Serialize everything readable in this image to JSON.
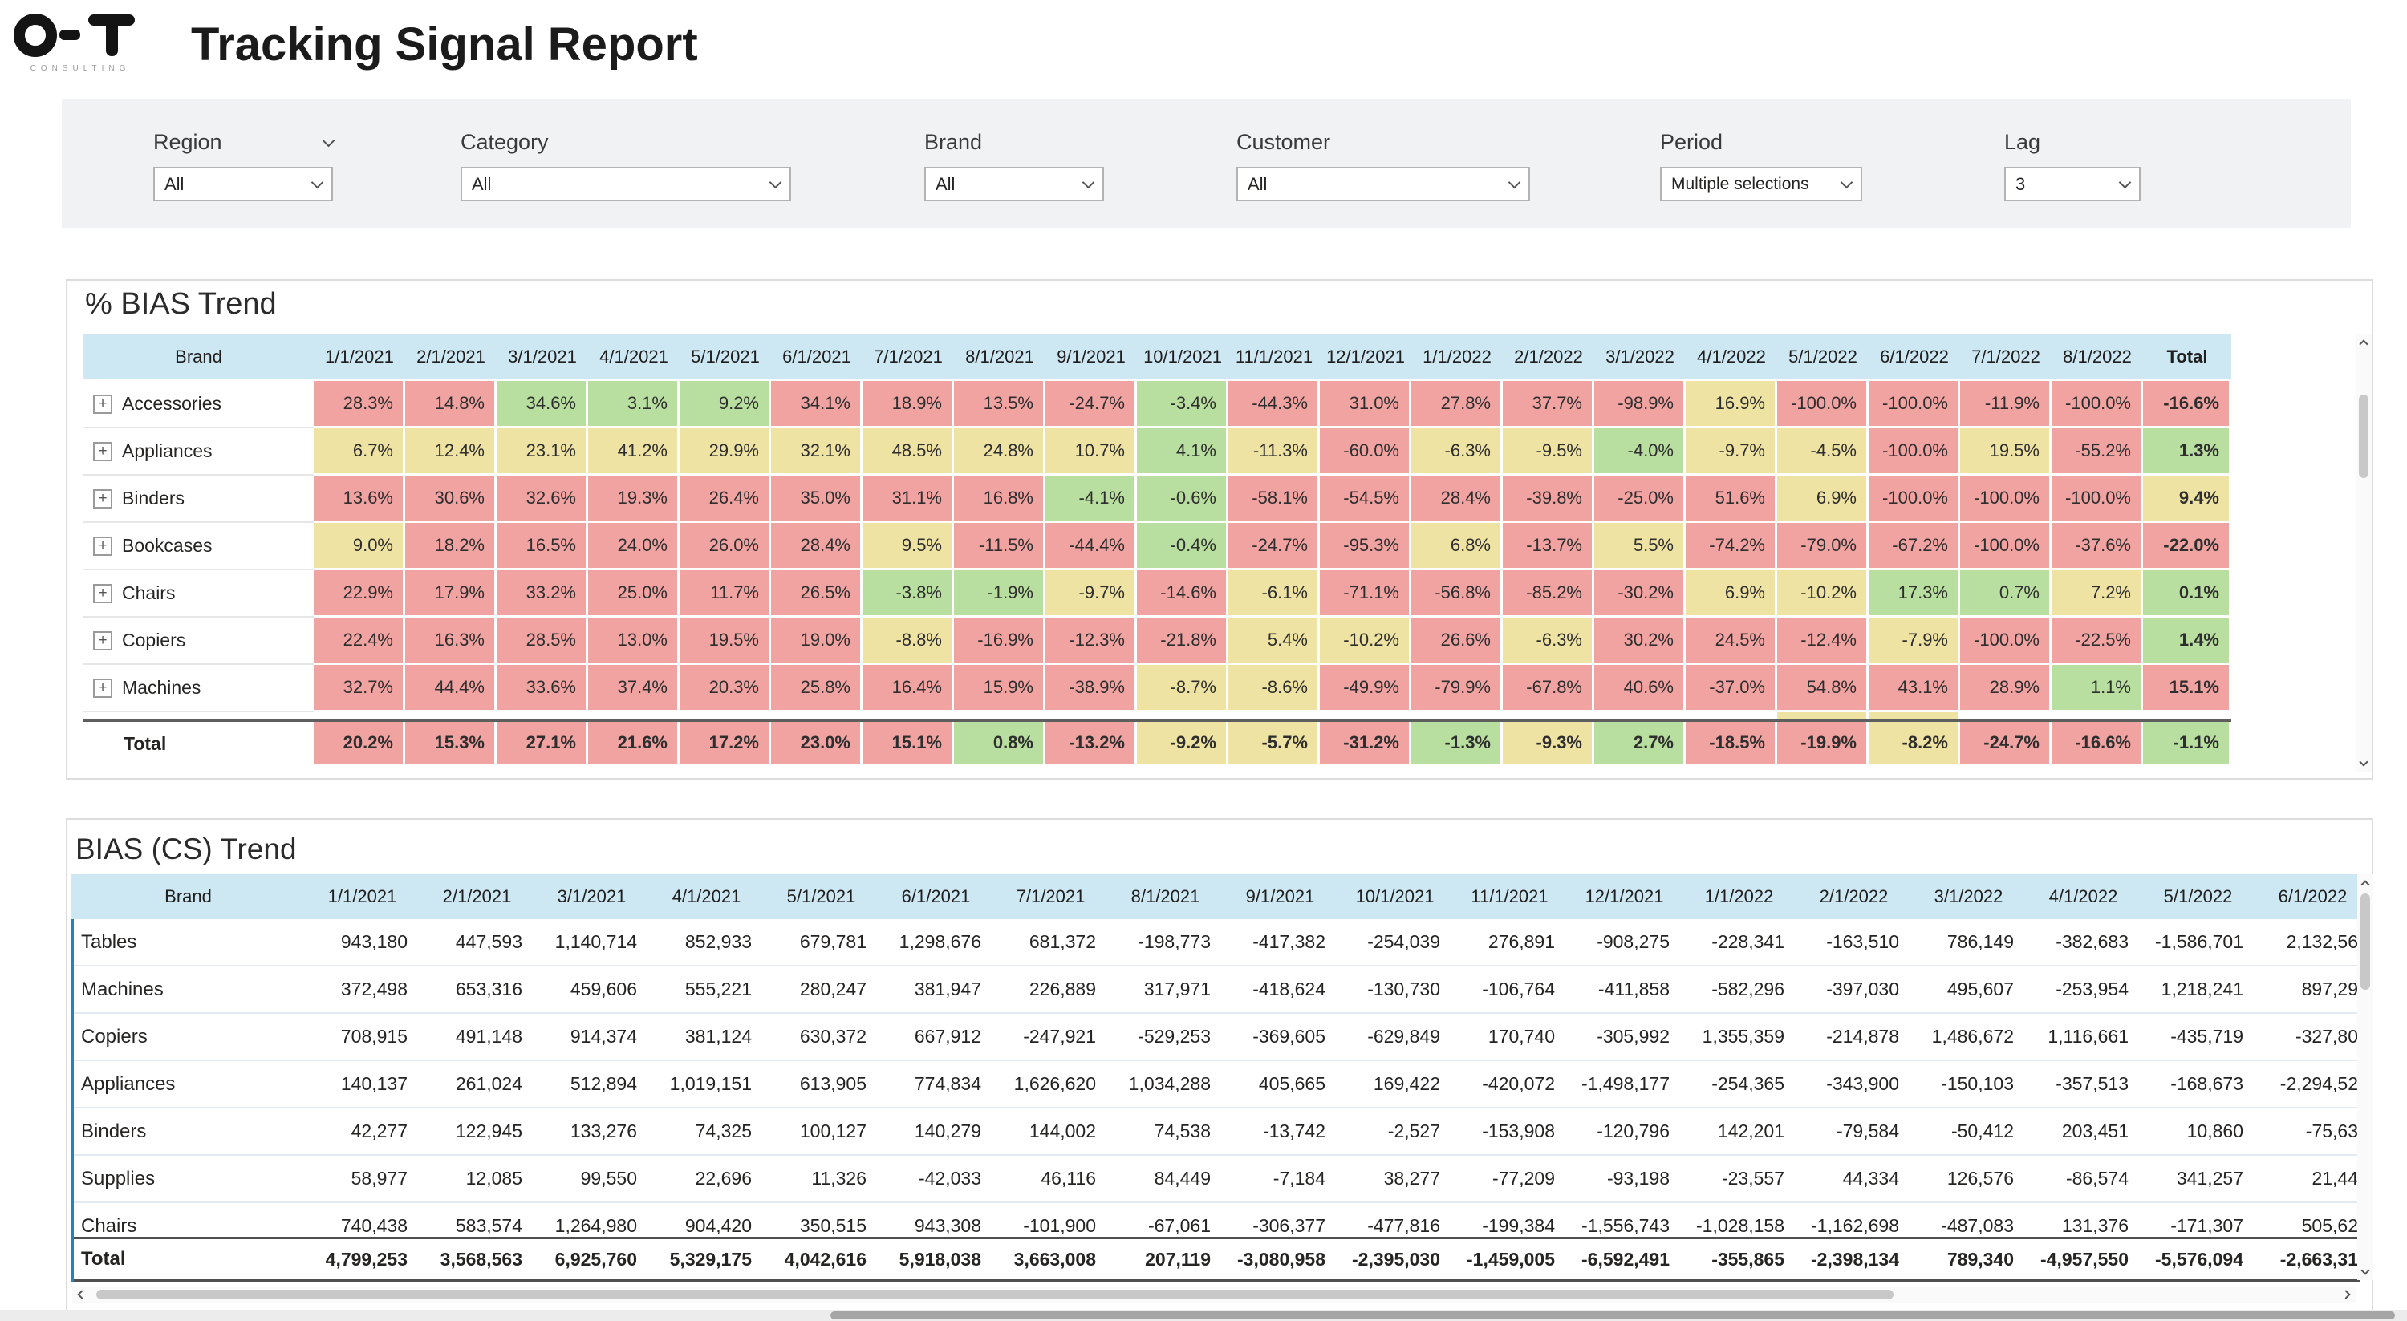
{
  "header": {
    "title": "Tracking Signal Report",
    "logo": {
      "text": "O-T",
      "subtext": "CONSULTING"
    }
  },
  "filters": {
    "region": {
      "label": "Region",
      "value": "All"
    },
    "category": {
      "label": "Category",
      "value": "All"
    },
    "brand": {
      "label": "Brand",
      "value": "All"
    },
    "customer": {
      "label": "Customer",
      "value": "All"
    },
    "period": {
      "label": "Period",
      "value": "Multiple selections"
    },
    "lag": {
      "label": "Lag",
      "value": "3"
    }
  },
  "bias_trend": {
    "title": "% BIAS Trend",
    "brand_header": "Brand",
    "total_header": "Total",
    "columns": [
      "1/1/2021",
      "2/1/2021",
      "3/1/2021",
      "4/1/2021",
      "5/1/2021",
      "6/1/2021",
      "7/1/2021",
      "8/1/2021",
      "9/1/2021",
      "10/1/2021",
      "11/1/2021",
      "12/1/2021",
      "1/1/2022",
      "2/1/2022",
      "3/1/2022",
      "4/1/2022",
      "5/1/2022",
      "6/1/2022",
      "7/1/2022",
      "8/1/2022"
    ],
    "rows": [
      {
        "brand": "Accessories",
        "values": [
          "28.3%",
          "14.8%",
          "34.6%",
          "3.1%",
          "9.2%",
          "34.1%",
          "18.9%",
          "13.5%",
          "-24.7%",
          "-3.4%",
          "-44.3%",
          "31.0%",
          "27.8%",
          "37.7%",
          "-98.9%",
          "16.9%",
          "-100.0%",
          "-100.0%",
          "-11.9%",
          "-100.0%"
        ],
        "colors": [
          "r",
          "r",
          "g",
          "g",
          "g",
          "r",
          "r",
          "r",
          "r",
          "g",
          "r",
          "r",
          "r",
          "r",
          "r",
          "y",
          "r",
          "r",
          "r",
          "r"
        ],
        "total": "-16.6%",
        "total_color": "r"
      },
      {
        "brand": "Appliances",
        "values": [
          "6.7%",
          "12.4%",
          "23.1%",
          "41.2%",
          "29.9%",
          "32.1%",
          "48.5%",
          "24.8%",
          "10.7%",
          "4.1%",
          "-11.3%",
          "-60.0%",
          "-6.3%",
          "-9.5%",
          "-4.0%",
          "-9.7%",
          "-4.5%",
          "-100.0%",
          "19.5%",
          "-55.2%"
        ],
        "colors": [
          "y",
          "y",
          "y",
          "y",
          "y",
          "y",
          "y",
          "y",
          "y",
          "g",
          "y",
          "r",
          "y",
          "y",
          "g",
          "y",
          "y",
          "r",
          "y",
          "r"
        ],
        "total": "1.3%",
        "total_color": "g"
      },
      {
        "brand": "Binders",
        "values": [
          "13.6%",
          "30.6%",
          "32.6%",
          "19.3%",
          "26.4%",
          "35.0%",
          "31.1%",
          "16.8%",
          "-4.1%",
          "-0.6%",
          "-58.1%",
          "-54.5%",
          "28.4%",
          "-39.8%",
          "-25.0%",
          "51.6%",
          "6.9%",
          "-100.0%",
          "-100.0%",
          "-100.0%"
        ],
        "colors": [
          "r",
          "r",
          "r",
          "r",
          "r",
          "r",
          "r",
          "r",
          "g",
          "g",
          "r",
          "r",
          "r",
          "r",
          "r",
          "r",
          "y",
          "r",
          "r",
          "r"
        ],
        "total": "9.4%",
        "total_color": "y"
      },
      {
        "brand": "Bookcases",
        "values": [
          "9.0%",
          "18.2%",
          "16.5%",
          "24.0%",
          "26.0%",
          "28.4%",
          "9.5%",
          "-11.5%",
          "-44.4%",
          "-0.4%",
          "-24.7%",
          "-95.3%",
          "6.8%",
          "-13.7%",
          "5.5%",
          "-74.2%",
          "-79.0%",
          "-67.2%",
          "-100.0%",
          "-37.6%"
        ],
        "colors": [
          "y",
          "r",
          "r",
          "r",
          "r",
          "r",
          "y",
          "r",
          "r",
          "g",
          "r",
          "r",
          "y",
          "r",
          "y",
          "r",
          "r",
          "r",
          "r",
          "r"
        ],
        "total": "-22.0%",
        "total_color": "r"
      },
      {
        "brand": "Chairs",
        "values": [
          "22.9%",
          "17.9%",
          "33.2%",
          "25.0%",
          "11.7%",
          "26.5%",
          "-3.8%",
          "-1.9%",
          "-9.7%",
          "-14.6%",
          "-6.1%",
          "-71.1%",
          "-56.8%",
          "-85.2%",
          "-30.2%",
          "6.9%",
          "-10.2%",
          "17.3%",
          "0.7%",
          "7.2%"
        ],
        "colors": [
          "r",
          "r",
          "r",
          "r",
          "r",
          "r",
          "g",
          "g",
          "y",
          "r",
          "y",
          "r",
          "r",
          "r",
          "r",
          "y",
          "y",
          "g",
          "g",
          "y"
        ],
        "total": "0.1%",
        "total_color": "g"
      },
      {
        "brand": "Copiers",
        "values": [
          "22.4%",
          "16.3%",
          "28.5%",
          "13.0%",
          "19.5%",
          "19.0%",
          "-8.8%",
          "-16.9%",
          "-12.3%",
          "-21.8%",
          "5.4%",
          "-10.2%",
          "26.6%",
          "-6.3%",
          "30.2%",
          "24.5%",
          "-12.4%",
          "-7.9%",
          "-100.0%",
          "-22.5%"
        ],
        "colors": [
          "r",
          "r",
          "r",
          "r",
          "r",
          "r",
          "y",
          "r",
          "r",
          "r",
          "y",
          "y",
          "r",
          "y",
          "r",
          "r",
          "r",
          "y",
          "r",
          "r"
        ],
        "total": "1.4%",
        "total_color": "g"
      },
      {
        "brand": "Machines",
        "values": [
          "32.7%",
          "44.4%",
          "33.6%",
          "37.4%",
          "20.3%",
          "25.8%",
          "16.4%",
          "15.9%",
          "-38.9%",
          "-8.7%",
          "-8.6%",
          "-49.9%",
          "-79.9%",
          "-67.8%",
          "40.6%",
          "-37.0%",
          "54.8%",
          "43.1%",
          "28.9%",
          "1.1%"
        ],
        "colors": [
          "r",
          "r",
          "r",
          "r",
          "r",
          "r",
          "r",
          "r",
          "r",
          "y",
          "y",
          "r",
          "r",
          "r",
          "r",
          "r",
          "r",
          "r",
          "r",
          "g"
        ],
        "total": "15.1%",
        "total_color": "r"
      }
    ],
    "partial_row": {
      "colors": [
        "w",
        "w",
        "w",
        "w",
        "w",
        "w",
        "w",
        "w",
        "w",
        "w",
        "w",
        "w",
        "w",
        "w",
        "w",
        "w",
        "y",
        "y",
        "w",
        "w"
      ]
    },
    "total_row": {
      "label": "Total",
      "values": [
        "20.2%",
        "15.3%",
        "27.1%",
        "21.6%",
        "17.2%",
        "23.0%",
        "15.1%",
        "0.8%",
        "-13.2%",
        "-9.2%",
        "-5.7%",
        "-31.2%",
        "-1.3%",
        "-9.3%",
        "2.7%",
        "-18.5%",
        "-19.9%",
        "-8.2%",
        "-24.7%",
        "-16.6%"
      ],
      "colors": [
        "r",
        "r",
        "r",
        "r",
        "r",
        "r",
        "r",
        "g",
        "r",
        "y",
        "y",
        "r",
        "g",
        "y",
        "g",
        "r",
        "r",
        "y",
        "r",
        "r"
      ],
      "total": "-1.1%",
      "total_color": "g"
    }
  },
  "bias_cs_trend": {
    "title": "BIAS (CS) Trend",
    "brand_header": "Brand",
    "columns": [
      "1/1/2021",
      "2/1/2021",
      "3/1/2021",
      "4/1/2021",
      "5/1/2021",
      "6/1/2021",
      "7/1/2021",
      "8/1/2021",
      "9/1/2021",
      "10/1/2021",
      "11/1/2021",
      "12/1/2021",
      "1/1/2022",
      "2/1/2022",
      "3/1/2022",
      "4/1/2022",
      "5/1/2022",
      "6/1/2022"
    ],
    "rows": [
      {
        "brand": "Tables",
        "values": [
          "943,180",
          "447,593",
          "1,140,714",
          "852,933",
          "679,781",
          "1,298,676",
          "681,372",
          "-198,773",
          "-417,382",
          "-254,039",
          "276,891",
          "-908,275",
          "-228,341",
          "-163,510",
          "786,149",
          "-382,683",
          "-1,586,701",
          "2,132,56"
        ]
      },
      {
        "brand": "Machines",
        "values": [
          "372,498",
          "653,316",
          "459,606",
          "555,221",
          "280,247",
          "381,947",
          "226,889",
          "317,971",
          "-418,624",
          "-130,730",
          "-106,764",
          "-411,858",
          "-582,296",
          "-397,030",
          "495,607",
          "-253,954",
          "1,218,241",
          "897,29"
        ]
      },
      {
        "brand": "Copiers",
        "values": [
          "708,915",
          "491,148",
          "914,374",
          "381,124",
          "630,372",
          "667,912",
          "-247,921",
          "-529,253",
          "-369,605",
          "-629,849",
          "170,740",
          "-305,992",
          "1,355,359",
          "-214,878",
          "1,486,672",
          "1,116,661",
          "-435,719",
          "-327,80"
        ]
      },
      {
        "brand": "Appliances",
        "values": [
          "140,137",
          "261,024",
          "512,894",
          "1,019,151",
          "613,905",
          "774,834",
          "1,626,620",
          "1,034,288",
          "405,665",
          "169,422",
          "-420,072",
          "-1,498,177",
          "-254,365",
          "-343,900",
          "-150,103",
          "-357,513",
          "-168,673",
          "-2,294,52"
        ]
      },
      {
        "brand": "Binders",
        "values": [
          "42,277",
          "122,945",
          "133,276",
          "74,325",
          "100,127",
          "140,279",
          "144,002",
          "74,538",
          "-13,742",
          "-2,527",
          "-153,908",
          "-120,796",
          "142,201",
          "-79,584",
          "-50,412",
          "203,451",
          "10,860",
          "-75,63"
        ]
      },
      {
        "brand": "Supplies",
        "values": [
          "58,977",
          "12,085",
          "99,550",
          "22,696",
          "11,326",
          "-42,033",
          "46,116",
          "84,449",
          "-7,184",
          "38,277",
          "-77,209",
          "-93,198",
          "-23,557",
          "44,334",
          "126,576",
          "-86,574",
          "341,257",
          "21,44"
        ]
      },
      {
        "brand": "Chairs",
        "values": [
          "740,438",
          "583,574",
          "1,264,980",
          "904,420",
          "350,515",
          "943,308",
          "-101,900",
          "-67,061",
          "-306,377",
          "-477,816",
          "-199,384",
          "-1,556,743",
          "-1,028,158",
          "-1,162,698",
          "-487,083",
          "131,376",
          "-171,307",
          "505,62"
        ]
      }
    ],
    "total_row": {
      "label": "Total",
      "values": [
        "4,799,253",
        "3,568,563",
        "6,925,760",
        "5,329,175",
        "4,042,616",
        "5,918,038",
        "3,663,008",
        "207,119",
        "-3,080,958",
        "-2,395,030",
        "-1,459,005",
        "-6,592,491",
        "-355,865",
        "-2,398,134",
        "789,340",
        "-4,957,550",
        "-5,576,094",
        "-2,663,31"
      ]
    }
  },
  "theme": {
    "red": "#f1a3a2",
    "yellow": "#efe3a3",
    "green": "#b8df9f",
    "header_blue": "#cde7f3",
    "accent_blue": "#2e7fb5"
  }
}
